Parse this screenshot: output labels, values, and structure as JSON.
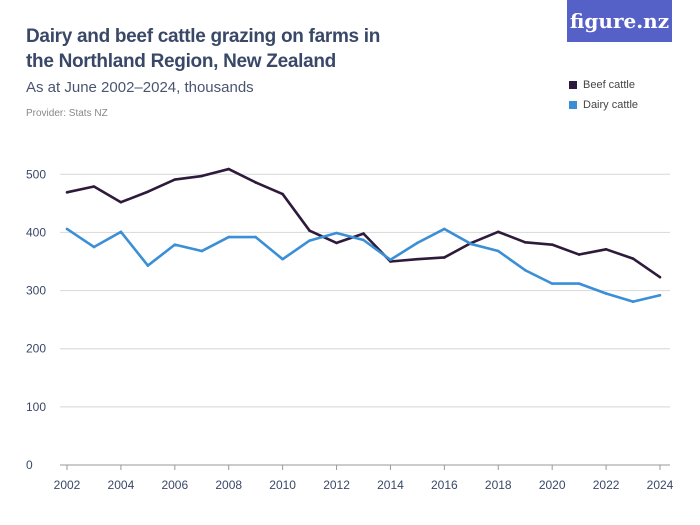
{
  "title": "Dairy and beef cattle grazing on farms in the Northland Region, New Zealand",
  "subtitle": "As at June 2002–2024, thousands",
  "provider": "Provider: Stats NZ",
  "logo": "figure.nz",
  "chart_data": {
    "type": "line",
    "x": [
      2002,
      2003,
      2004,
      2005,
      2006,
      2007,
      2008,
      2009,
      2010,
      2011,
      2012,
      2013,
      2014,
      2015,
      2016,
      2017,
      2018,
      2019,
      2020,
      2021,
      2022,
      2023,
      2024
    ],
    "series": [
      {
        "name": "Beef cattle",
        "color": "#2e1a3a",
        "values": [
          469,
          479,
          452,
          470,
          491,
          497,
          509,
          486,
          466,
          403,
          382,
          398,
          350,
          354,
          357,
          382,
          401,
          383,
          379,
          362,
          371,
          355,
          323
        ]
      },
      {
        "name": "Dairy cattle",
        "color": "#3a8fd6",
        "values": [
          406,
          375,
          401,
          343,
          379,
          368,
          392,
          392,
          354,
          386,
          399,
          387,
          353,
          382,
          406,
          380,
          368,
          335,
          312,
          312,
          295,
          281,
          292
        ]
      }
    ],
    "yticks": [
      0,
      100,
      200,
      300,
      400,
      500
    ],
    "xticks": [
      2002,
      2004,
      2006,
      2008,
      2010,
      2012,
      2014,
      2016,
      2018,
      2020,
      2022,
      2024
    ],
    "ylim": [
      0,
      500
    ],
    "xlim": [
      2002,
      2024
    ],
    "grid": true,
    "legend": "top-right"
  }
}
